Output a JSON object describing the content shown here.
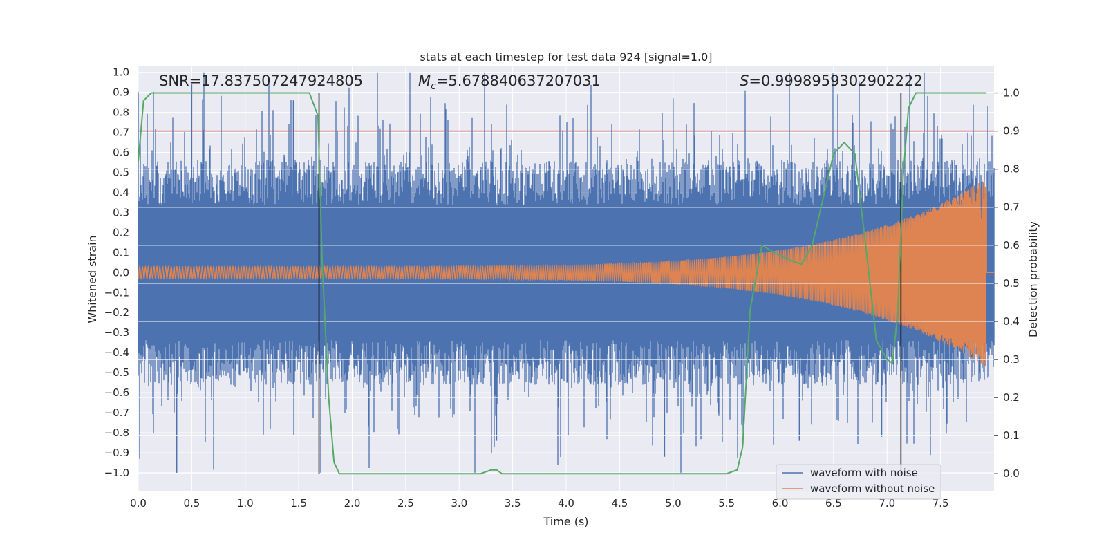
{
  "chart_data": {
    "type": "line",
    "title": "stats at each timestep for test data 924 [signal=1.0]",
    "xlabel": "Time (s)",
    "ylabel_left": "Whitened strain",
    "ylabel_right": "Detection probability",
    "xlim": [
      0.0,
      8.0
    ],
    "ylim_left": [
      -1.09,
      1.03
    ],
    "ylim_right": [
      -0.045,
      1.07
    ],
    "xticks": [
      0.0,
      0.5,
      1.0,
      1.5,
      2.0,
      2.5,
      3.0,
      3.5,
      4.0,
      4.5,
      5.0,
      5.5,
      6.0,
      6.5,
      7.0,
      7.5
    ],
    "xtick_labels": [
      "0.0",
      "0.5",
      "1.0",
      "1.5",
      "2.0",
      "2.5",
      "3.0",
      "3.5",
      "4.0",
      "4.5",
      "5.0",
      "5.5",
      "6.0",
      "6.5",
      "7.0",
      "7.5"
    ],
    "yticks_left": [
      1.0,
      0.9,
      0.8,
      0.7,
      0.6,
      0.5,
      0.4,
      0.3,
      0.2,
      0.1,
      0.0,
      -0.1,
      -0.2,
      -0.3,
      -0.4,
      -0.5,
      -0.6,
      -0.7,
      -0.8,
      -0.9,
      -1.0
    ],
    "ytick_labels_left": [
      "1.0",
      "0.9",
      "0.8",
      "0.7",
      "0.6",
      "0.5",
      "0.4",
      "0.3",
      "0.2",
      "0.1",
      "0.0",
      "−0.1",
      "−0.2",
      "−0.3",
      "−0.4",
      "−0.5",
      "−0.6",
      "−0.7",
      "−0.8",
      "−0.9",
      "−1.0"
    ],
    "yticks_right": [
      1.0,
      0.9,
      0.8,
      0.7,
      0.6,
      0.5,
      0.4,
      0.3,
      0.2,
      0.1,
      0.0
    ],
    "ytick_labels_right": [
      "1.0",
      "0.9",
      "0.8",
      "0.7",
      "0.6",
      "0.5",
      "0.4",
      "0.3",
      "0.2",
      "0.1",
      "0.0"
    ],
    "annotations": {
      "snr": "SNR=17.837507247924805",
      "mc_symbol": "M",
      "mc_sub": "c",
      "mc_value": "=5.678840637207031",
      "s_symbol": "S",
      "s_value": "=0.9998959302902222"
    },
    "threshold": 0.9,
    "vertical_lines": [
      1.69,
      7.13
    ],
    "series": [
      {
        "name": "waveform with noise",
        "color": "#4c72b0",
        "envelope_abs_max": 1.0,
        "typical_abs": 0.45
      },
      {
        "name": "waveform without noise",
        "color": "#dd8452",
        "amplitude_start": 0.03,
        "amplitude_end": 0.47,
        "end_time": 7.93
      },
      {
        "name": "detection probability",
        "color": "#55a868",
        "x": [
          0.0,
          0.05,
          0.12,
          1.6,
          1.68,
          1.72,
          1.78,
          1.83,
          1.88,
          2.0,
          3.2,
          3.3,
          3.35,
          3.4,
          3.5,
          5.5,
          5.6,
          5.65,
          5.72,
          5.83,
          5.95,
          6.1,
          6.2,
          6.3,
          6.4,
          6.5,
          6.6,
          6.7,
          6.8,
          6.9,
          7.0,
          7.05,
          7.1,
          7.15,
          7.2,
          7.27,
          7.93
        ],
        "y": [
          0.82,
          0.98,
          1.0,
          1.0,
          0.94,
          0.55,
          0.2,
          0.03,
          0.0,
          0.0,
          0.0,
          0.01,
          0.01,
          0.0,
          0.0,
          0.0,
          0.01,
          0.07,
          0.43,
          0.6,
          0.58,
          0.56,
          0.55,
          0.6,
          0.72,
          0.84,
          0.87,
          0.84,
          0.6,
          0.35,
          0.3,
          0.29,
          0.42,
          0.78,
          0.96,
          1.0,
          1.0
        ]
      }
    ],
    "legend_position": "lower-right",
    "threshold_color": "#c44e52",
    "vline_color": "#000000",
    "background_color": "#eaeaf2",
    "grid": true
  }
}
